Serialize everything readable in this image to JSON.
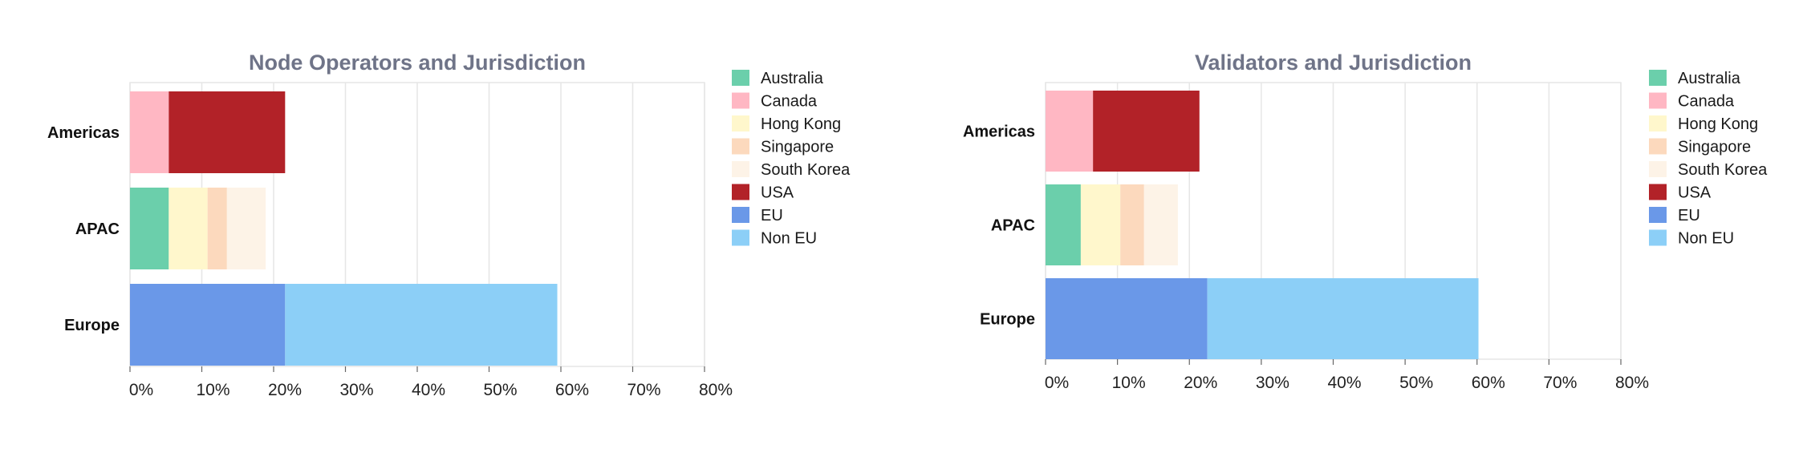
{
  "colors": {
    "Australia": "#6bcfab",
    "Canada": "#ffb7c3",
    "Hong Kong": "#fff7cc",
    "Singapore": "#fcd9bd",
    "South Korea": "#fdf3e7",
    "USA": "#b22228",
    "EU": "#6a98e8",
    "Non EU": "#8ccff7",
    "title": "#6f7488"
  },
  "legend": [
    "Australia",
    "Canada",
    "Hong Kong",
    "Singapore",
    "South Korea",
    "USA",
    "EU",
    "Non EU"
  ],
  "chart_data": [
    {
      "type": "bar",
      "orientation": "horizontal",
      "stacked": true,
      "title": "Node Operators and Jurisdiction",
      "categories": [
        "Americas",
        "APAC",
        "Europe"
      ],
      "xlim": [
        0,
        80
      ],
      "xticks": [
        "0%",
        "10%",
        "20%",
        "30%",
        "40%",
        "50%",
        "60%",
        "70%",
        "80%"
      ],
      "grid": true,
      "legend_position": "right",
      "series": [
        {
          "name": "Australia",
          "values": [
            0,
            5.4,
            0
          ]
        },
        {
          "name": "Canada",
          "values": [
            5.4,
            0,
            0
          ]
        },
        {
          "name": "Hong Kong",
          "values": [
            0,
            5.4,
            0
          ]
        },
        {
          "name": "Singapore",
          "values": [
            0,
            2.7,
            0
          ]
        },
        {
          "name": "South Korea",
          "values": [
            0,
            5.4,
            0
          ]
        },
        {
          "name": "USA",
          "values": [
            16.2,
            0,
            0
          ]
        },
        {
          "name": "EU",
          "values": [
            0,
            0,
            21.6
          ]
        },
        {
          "name": "Non EU",
          "values": [
            0,
            0,
            37.9
          ]
        }
      ]
    },
    {
      "type": "bar",
      "orientation": "horizontal",
      "stacked": true,
      "title": "Validators and Jurisdiction",
      "categories": [
        "Americas",
        "APAC",
        "Europe"
      ],
      "xlim": [
        0,
        80
      ],
      "xticks": [
        "0%",
        "10%",
        "20%",
        "30%",
        "40%",
        "50%",
        "60%",
        "70%",
        "80%"
      ],
      "grid": true,
      "legend_position": "right",
      "series": [
        {
          "name": "Australia",
          "values": [
            0,
            4.9,
            0
          ]
        },
        {
          "name": "Canada",
          "values": [
            6.6,
            0,
            0
          ]
        },
        {
          "name": "Hong Kong",
          "values": [
            0,
            5.5,
            0
          ]
        },
        {
          "name": "Singapore",
          "values": [
            0,
            3.3,
            0
          ]
        },
        {
          "name": "South Korea",
          "values": [
            0,
            4.7,
            0
          ]
        },
        {
          "name": "USA",
          "values": [
            14.8,
            0,
            0
          ]
        },
        {
          "name": "EU",
          "values": [
            0,
            0,
            22.5
          ]
        },
        {
          "name": "Non EU",
          "values": [
            0,
            0,
            37.7
          ]
        }
      ]
    }
  ]
}
